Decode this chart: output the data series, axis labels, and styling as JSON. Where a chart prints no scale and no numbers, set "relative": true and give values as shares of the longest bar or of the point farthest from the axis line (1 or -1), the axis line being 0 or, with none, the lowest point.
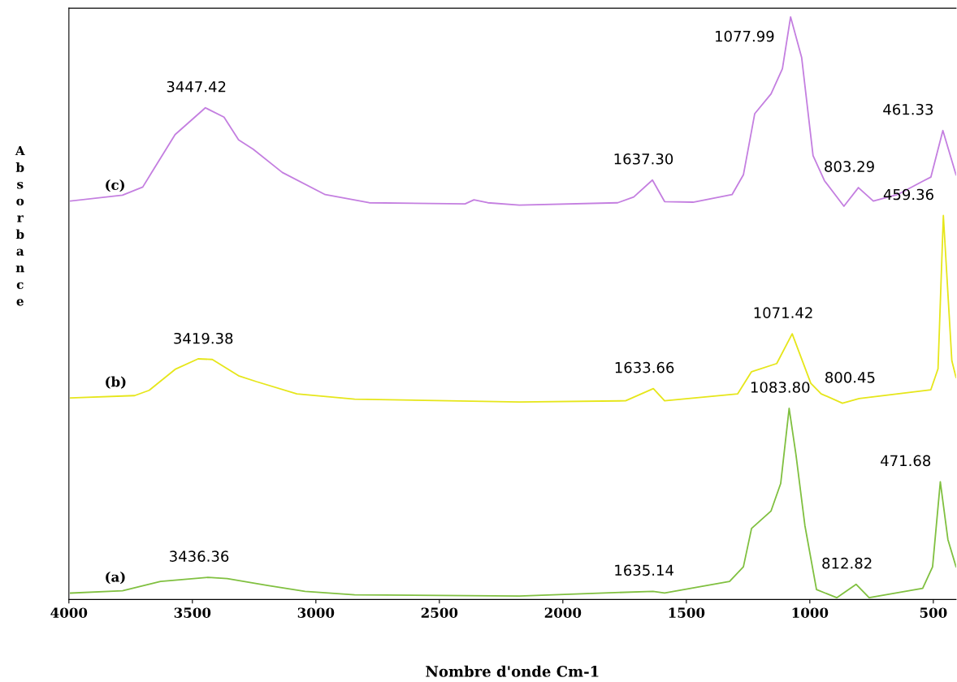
{
  "chart_data": {
    "type": "line",
    "relative": true,
    "xlabel": "Nombre d'onde Cm-1",
    "ylabel": "Absorbance",
    "xlim": [
      4000,
      408
    ],
    "xticks": [
      4000,
      3500,
      3000,
      2500,
      2000,
      1500,
      1000,
      500
    ],
    "grid": false,
    "legend": false,
    "marker": "none",
    "line_style": "solid",
    "series": [
      {
        "name": "(c)",
        "color": "#c47fe0",
        "x": [
          3993,
          3783,
          3701,
          3665,
          3570,
          3447.42,
          3372,
          3313,
          3254,
          3136,
          2962,
          2784,
          2396,
          2360,
          2304,
          2176,
          1778,
          1713,
          1637.3,
          1588,
          1473,
          1315,
          1269,
          1223,
          1157,
          1111,
          1077.99,
          1033,
          987,
          941,
          862,
          803.29,
          743,
          645,
          543,
          510,
          461.33,
          408
        ],
        "values": [
          0.684,
          0.694,
          0.708,
          0.733,
          0.798,
          0.844,
          0.828,
          0.789,
          0.773,
          0.733,
          0.695,
          0.681,
          0.679,
          0.686,
          0.681,
          0.677,
          0.681,
          0.691,
          0.72,
          0.683,
          0.682,
          0.695,
          0.729,
          0.834,
          0.868,
          0.911,
          1.0,
          0.93,
          0.762,
          0.719,
          0.675,
          0.707,
          0.684,
          0.695,
          0.718,
          0.725,
          0.805,
          0.729
        ]
      },
      {
        "name": "(b)",
        "color": "#e6e61a",
        "x": [
          3993,
          3734,
          3675,
          3570,
          3477,
          3419.38,
          3313,
          3241,
          3077,
          2843,
          2176,
          1746,
          1633.66,
          1588,
          1292,
          1236,
          1134,
          1071.42,
          996,
          954,
          868,
          800.45,
          645,
          510,
          481,
          459.36,
          425,
          408
        ],
        "values": [
          0.346,
          0.35,
          0.359,
          0.395,
          0.413,
          0.412,
          0.384,
          0.374,
          0.353,
          0.344,
          0.339,
          0.341,
          0.362,
          0.341,
          0.353,
          0.391,
          0.405,
          0.456,
          0.371,
          0.353,
          0.337,
          0.345,
          0.353,
          0.36,
          0.396,
          0.659,
          0.41,
          0.381
        ]
      },
      {
        "name": "(a)",
        "color": "#80c040",
        "x": [
          3993,
          3783,
          3629,
          3436.36,
          3359,
          3195,
          3044,
          2843,
          2176,
          1635.14,
          1588,
          1325,
          1269,
          1236,
          1157,
          1118,
          1083.8,
          1056,
          1020,
          973,
          891,
          812.82,
          760,
          543,
          503,
          471.68,
          441,
          408
        ],
        "values": [
          0.011,
          0.015,
          0.031,
          0.038,
          0.036,
          0.024,
          0.014,
          0.008,
          0.006,
          0.014,
          0.011,
          0.031,
          0.056,
          0.122,
          0.152,
          0.199,
          0.328,
          0.248,
          0.127,
          0.017,
          0.003,
          0.026,
          0.003,
          0.019,
          0.056,
          0.202,
          0.103,
          0.056
        ]
      }
    ],
    "annotations": [
      {
        "text": "3447.42",
        "x": 3447.42,
        "y": 0.844
      },
      {
        "text": "1637.30",
        "x": 1637.3,
        "y": 0.72
      },
      {
        "text": "1077.99",
        "x": 1077.99,
        "y": 1.0
      },
      {
        "text": "803.29",
        "x": 803.29,
        "y": 0.707
      },
      {
        "text": "461.33",
        "x": 461.33,
        "y": 0.805
      },
      {
        "text": "3419.38",
        "x": 3419.38,
        "y": 0.412
      },
      {
        "text": "1633.66",
        "x": 1633.66,
        "y": 0.362
      },
      {
        "text": "1071.42",
        "x": 1071.42,
        "y": 0.456
      },
      {
        "text": "800.45",
        "x": 800.45,
        "y": 0.345
      },
      {
        "text": "459.36",
        "x": 459.36,
        "y": 0.659
      },
      {
        "text": "3436.36",
        "x": 3436.36,
        "y": 0.038
      },
      {
        "text": "1635.14",
        "x": 1635.14,
        "y": 0.014
      },
      {
        "text": "1083.80",
        "x": 1083.8,
        "y": 0.328
      },
      {
        "text": "812.82",
        "x": 812.82,
        "y": 0.026
      },
      {
        "text": "471.68",
        "x": 471.68,
        "y": 0.202
      }
    ]
  }
}
